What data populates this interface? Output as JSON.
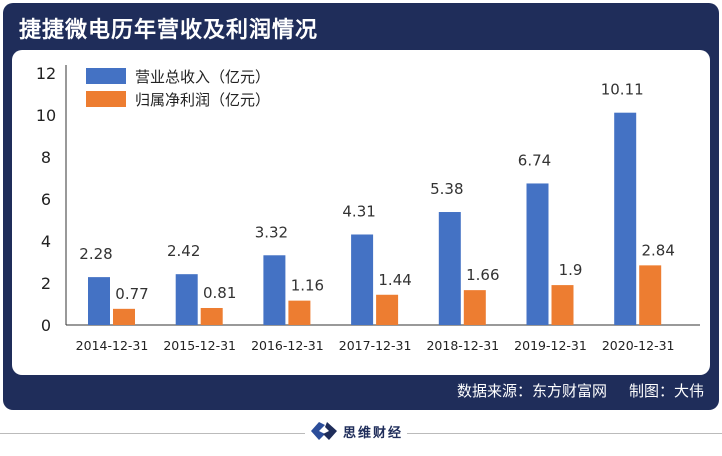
{
  "title": "捷捷微电历年营收及利润情况",
  "footer": {
    "source": "数据来源：东方财富网",
    "author": "制图：大伟"
  },
  "logo": {
    "text": "思维财经"
  },
  "colors": {
    "frame": "#1f2d5a",
    "revenue": "#4472c4",
    "profit": "#ed7d31"
  },
  "chart_data": {
    "type": "bar",
    "title": "捷捷微电历年营收及利润情况",
    "categories": [
      "2014-12-31",
      "2015-12-31",
      "2016-12-31",
      "2017-12-31",
      "2018-12-31",
      "2019-12-31",
      "2020-12-31"
    ],
    "series": [
      {
        "name": "营业总收入（亿元）",
        "values": [
          2.28,
          2.42,
          3.32,
          4.31,
          5.38,
          6.74,
          10.11
        ],
        "labels": [
          "2.28",
          "2.42",
          "3.32",
          "4.31",
          "5.38",
          "6.74",
          "10.11"
        ]
      },
      {
        "name": "归属净利润（亿元）",
        "values": [
          0.77,
          0.81,
          1.16,
          1.44,
          1.66,
          1.9,
          2.84
        ],
        "labels": [
          "0.77",
          "0.81",
          "1.16",
          "1.44",
          "1.66",
          "1.9",
          "2.84"
        ]
      }
    ],
    "ylim": [
      0,
      12
    ],
    "yticks": [
      "0",
      "2",
      "4",
      "6",
      "8",
      "10",
      "12"
    ],
    "grid": false,
    "legend": "top-left"
  }
}
